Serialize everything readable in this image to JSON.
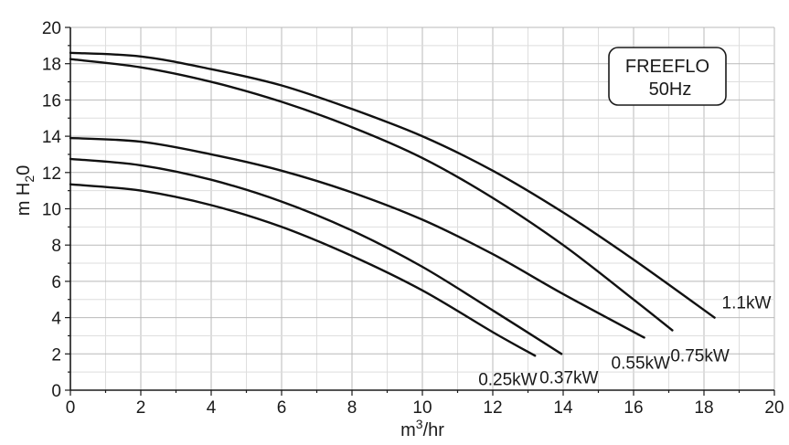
{
  "chart_data": {
    "type": "line",
    "xlabel_base": "m",
    "xlabel_sup": "3",
    "xlabel_rest": "/hr",
    "ylabel_base": "m H",
    "ylabel_sub": "2",
    "ylabel_rest": "0",
    "xlim": [
      0,
      20
    ],
    "ylim": [
      0,
      20
    ],
    "x_ticks": [
      "0",
      "2",
      "4",
      "6",
      "8",
      "10",
      "12",
      "14",
      "16",
      "18",
      "20"
    ],
    "y_ticks": [
      "0",
      "2",
      "4",
      "6",
      "8",
      "10",
      "12",
      "14",
      "16",
      "18",
      "20"
    ],
    "grid": true,
    "legend_box": {
      "line1": "FREEFLO",
      "line2": "50Hz",
      "placement": "top-right"
    },
    "series": [
      {
        "name": "0.25kW",
        "shutoff": 11.35,
        "end_x": 13.2,
        "end_y": 1.9,
        "points": [
          [
            0,
            11.35
          ],
          [
            2,
            11.0
          ],
          [
            4,
            10.2
          ],
          [
            6,
            9.0
          ],
          [
            8,
            7.4
          ],
          [
            10,
            5.5
          ],
          [
            12,
            3.2
          ],
          [
            13.2,
            1.9
          ]
        ]
      },
      {
        "name": "0.37kW",
        "shutoff": 12.75,
        "end_x": 13.95,
        "end_y": 2.0,
        "points": [
          [
            0,
            12.75
          ],
          [
            2,
            12.4
          ],
          [
            4,
            11.6
          ],
          [
            6,
            10.4
          ],
          [
            8,
            8.8
          ],
          [
            10,
            6.8
          ],
          [
            12,
            4.4
          ],
          [
            13.95,
            2.0
          ]
        ]
      },
      {
        "name": "0.55kW",
        "shutoff": 13.9,
        "end_x": 16.3,
        "end_y": 2.9,
        "points": [
          [
            0,
            13.9
          ],
          [
            2,
            13.7
          ],
          [
            4,
            13.0
          ],
          [
            6,
            12.1
          ],
          [
            8,
            10.9
          ],
          [
            10,
            9.4
          ],
          [
            12,
            7.5
          ],
          [
            14,
            5.3
          ],
          [
            16.3,
            2.9
          ]
        ]
      },
      {
        "name": "0.75kW",
        "shutoff": 18.25,
        "end_x": 17.1,
        "end_y": 3.3,
        "points": [
          [
            0,
            18.25
          ],
          [
            2,
            17.8
          ],
          [
            4,
            17.0
          ],
          [
            6,
            15.9
          ],
          [
            8,
            14.5
          ],
          [
            10,
            12.8
          ],
          [
            12,
            10.6
          ],
          [
            14,
            8.0
          ],
          [
            16,
            5.0
          ],
          [
            17.1,
            3.3
          ]
        ]
      },
      {
        "name": "1.1kW",
        "shutoff": 18.6,
        "end_x": 18.3,
        "end_y": 4.0,
        "points": [
          [
            0,
            18.6
          ],
          [
            2,
            18.4
          ],
          [
            4,
            17.7
          ],
          [
            6,
            16.8
          ],
          [
            8,
            15.5
          ],
          [
            10,
            14.0
          ],
          [
            12,
            12.1
          ],
          [
            14,
            9.8
          ],
          [
            16,
            7.2
          ],
          [
            18.3,
            4.0
          ]
        ]
      }
    ]
  }
}
